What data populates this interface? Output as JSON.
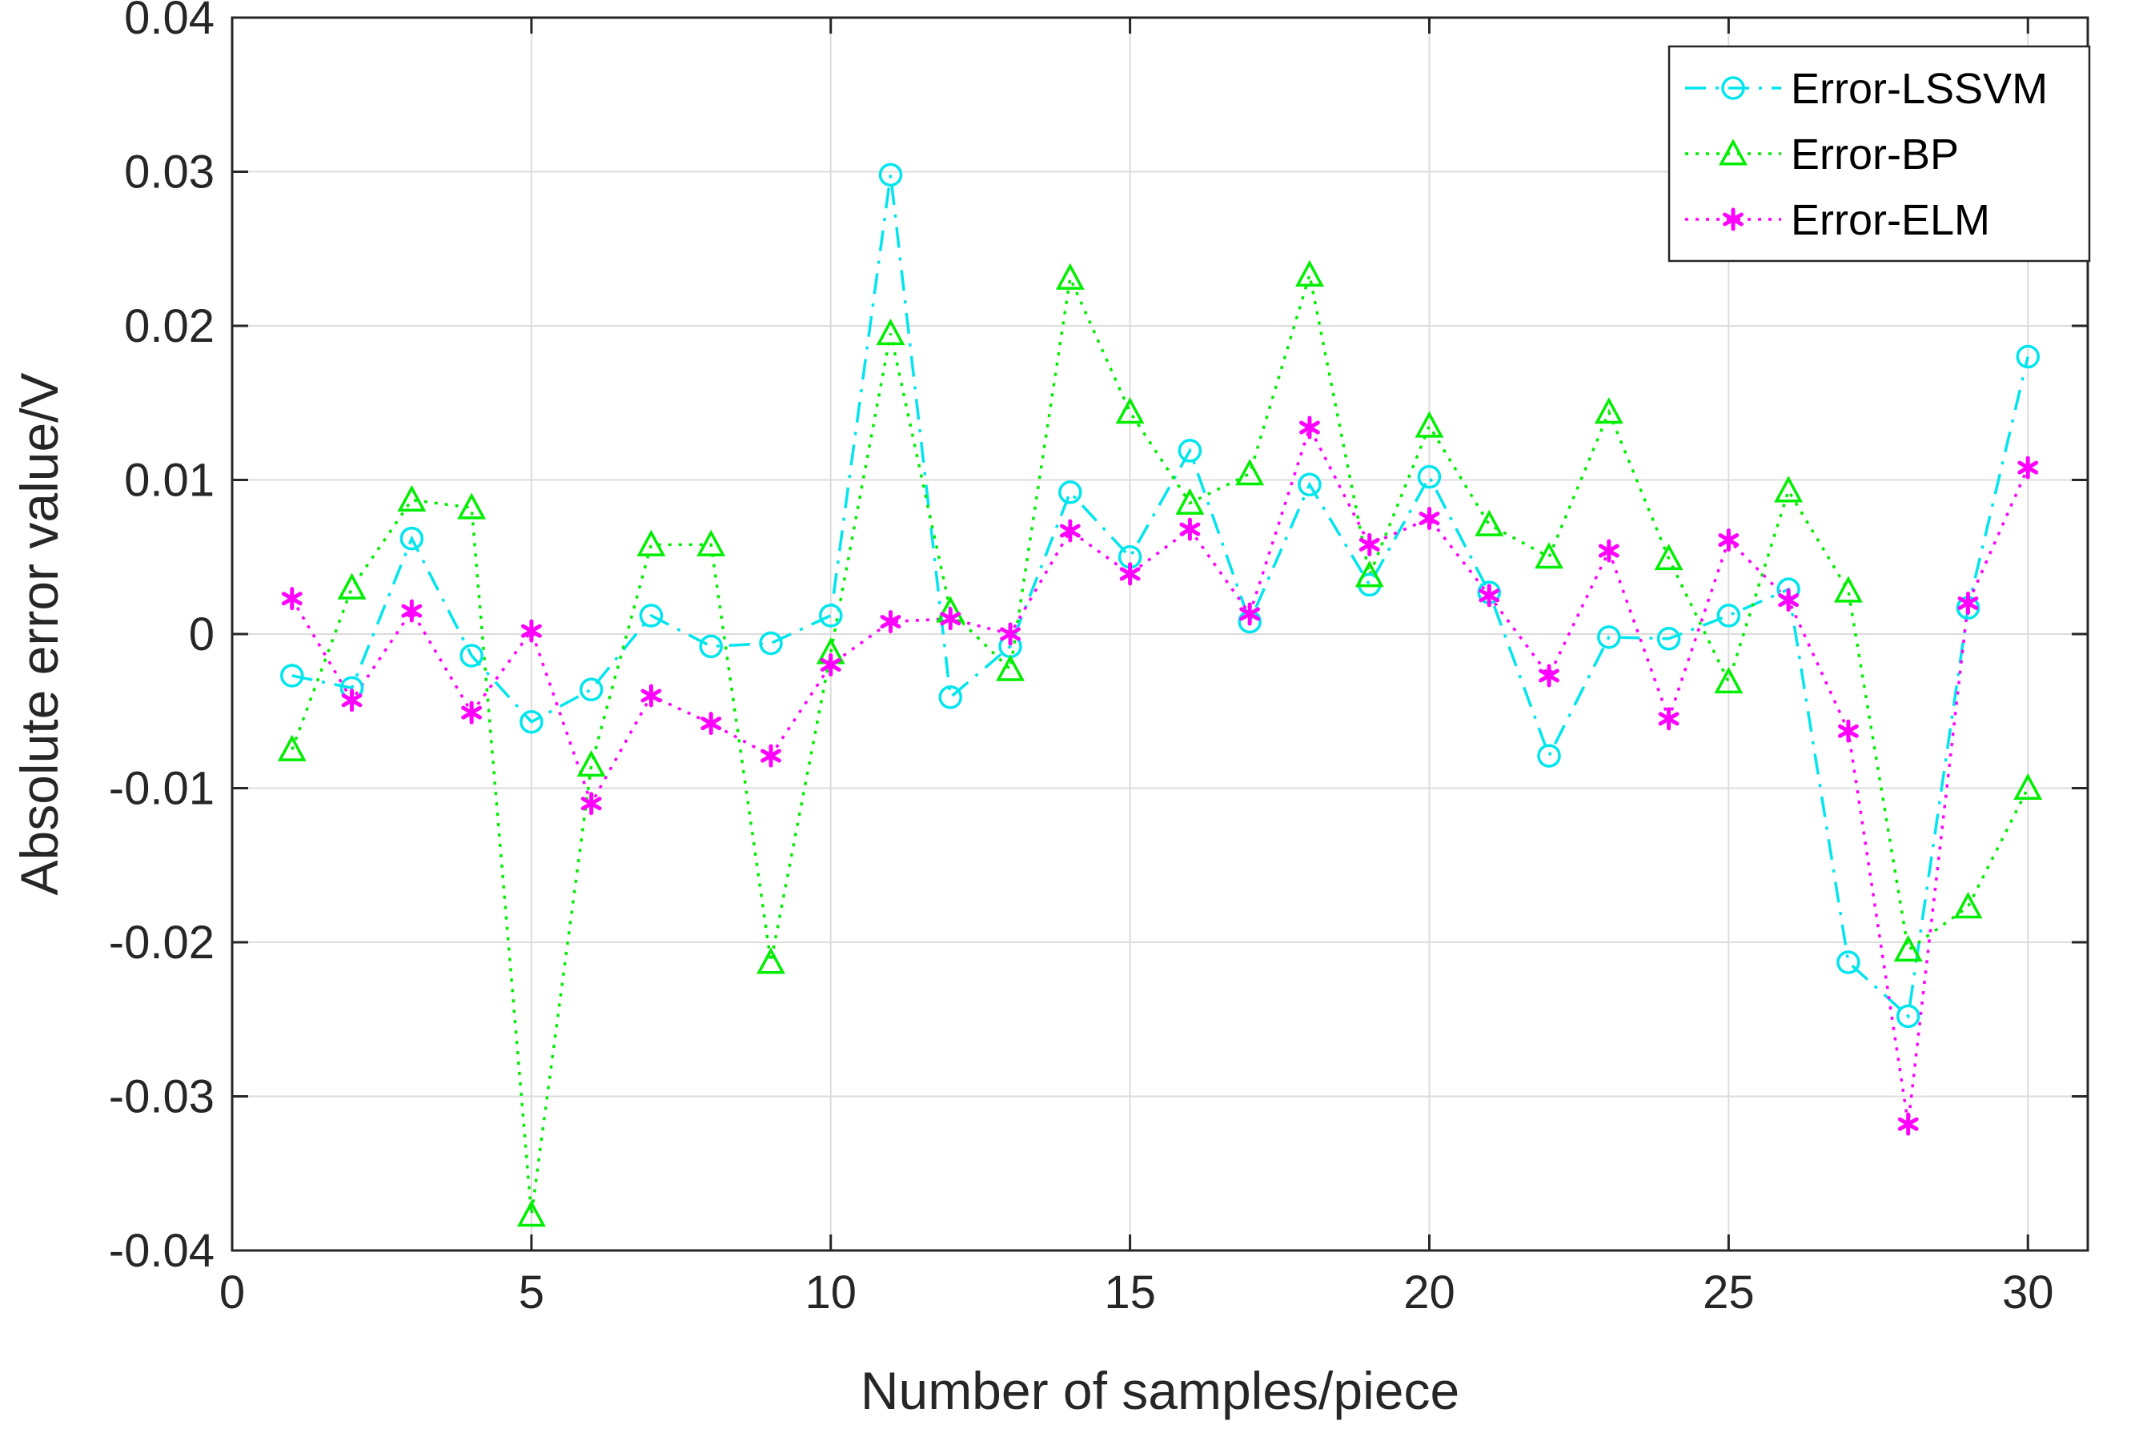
{
  "chart_data": {
    "type": "line",
    "title": "",
    "xlabel": "Number of samples/piece",
    "ylabel": "Absolute error value/V",
    "xlim": [
      0,
      31
    ],
    "ylim": [
      -0.04,
      0.04
    ],
    "xticks": [
      0,
      5,
      10,
      15,
      20,
      25,
      30
    ],
    "xtick_labels": [
      "0",
      "5",
      "10",
      "15",
      "20",
      "25",
      "30"
    ],
    "yticks": [
      -0.04,
      -0.03,
      -0.02,
      -0.01,
      0,
      0.01,
      0.02,
      0.03,
      0.04
    ],
    "ytick_labels": [
      "-0.04",
      "-0.03",
      "-0.02",
      "-0.01",
      "0",
      "0.01",
      "0.02",
      "0.03",
      "0.04"
    ],
    "grid": true,
    "legend_position": "top-right",
    "x": [
      1,
      2,
      3,
      4,
      5,
      6,
      7,
      8,
      9,
      10,
      11,
      12,
      13,
      14,
      15,
      16,
      17,
      18,
      19,
      20,
      21,
      22,
      23,
      24,
      25,
      26,
      27,
      28,
      29,
      30
    ],
    "series": [
      {
        "name": "Error-LSSVM",
        "color": "#00E5EE",
        "line_style": "dash-dot",
        "marker": "circle",
        "values": [
          -0.0027,
          -0.0035,
          0.0062,
          -0.0014,
          -0.0057,
          -0.0036,
          0.0012,
          -0.0008,
          -0.0006,
          0.0012,
          0.0298,
          -0.0041,
          -0.0008,
          0.0092,
          0.005,
          0.0119,
          0.0008,
          0.0097,
          0.0032,
          0.0102,
          0.0027,
          -0.0079,
          -0.0002,
          -0.0003,
          0.0012,
          0.0029,
          -0.0213,
          -0.0248,
          0.0017,
          0.018
        ]
      },
      {
        "name": "Error-BP",
        "color": "#00EE00",
        "line_style": "dotted",
        "marker": "triangle",
        "values": [
          -0.0075,
          0.003,
          0.0087,
          0.0082,
          -0.0377,
          -0.0085,
          0.0058,
          0.0058,
          -0.0213,
          -0.0012,
          0.0195,
          0.0015,
          -0.0023,
          0.0231,
          0.0144,
          0.0085,
          0.0104,
          0.0233,
          0.0038,
          0.0135,
          0.0071,
          0.005,
          0.0144,
          0.0049,
          -0.0031,
          0.0093,
          0.0028,
          -0.0205,
          -0.0177,
          -0.01
        ]
      },
      {
        "name": "Error-ELM",
        "color": "#FF00FF",
        "line_style": "dotted",
        "marker": "asterisk",
        "values": [
          0.0023,
          -0.0043,
          0.0015,
          -0.0051,
          0.0002,
          -0.011,
          -0.004,
          -0.0058,
          -0.0079,
          -0.002,
          0.0008,
          0.001,
          0.0,
          0.0067,
          0.0039,
          0.0068,
          0.0013,
          0.0134,
          0.0058,
          0.0075,
          0.0025,
          -0.0027,
          0.0054,
          -0.0055,
          0.0061,
          0.0022,
          -0.0063,
          -0.0318,
          0.002,
          0.0108
        ]
      }
    ]
  }
}
